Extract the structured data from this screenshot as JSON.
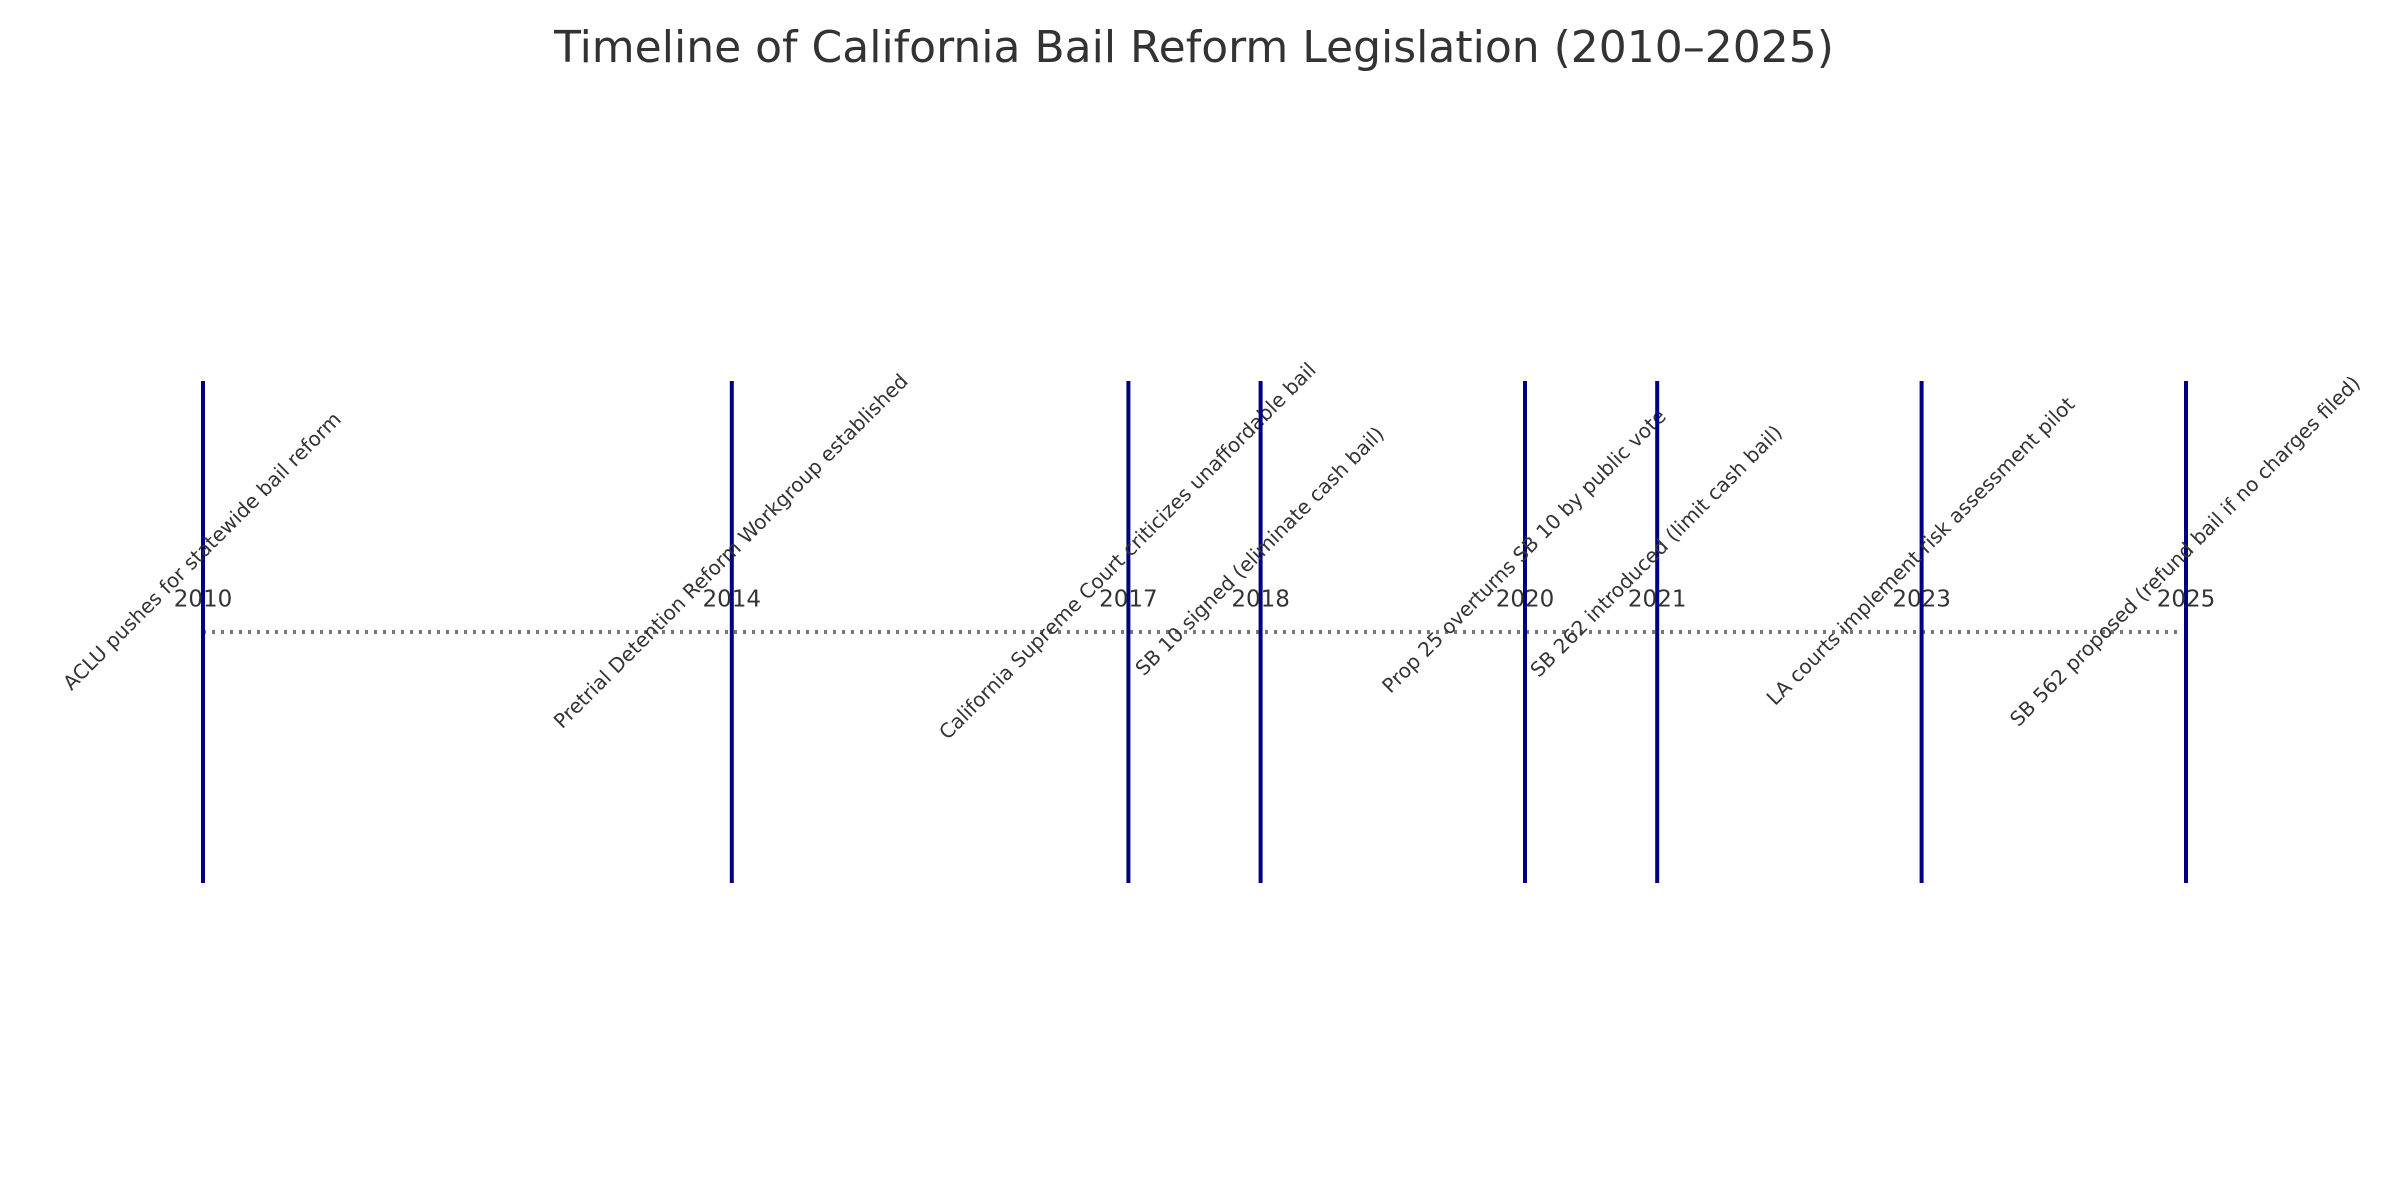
{
  "chart_data": {
    "type": "timeline",
    "title": "Timeline of California Bail Reform Legislation (2010–2025)",
    "x": [
      2010,
      2014,
      2017,
      2018,
      2020,
      2021,
      2023,
      2025
    ],
    "events": [
      "ACLU pushes for statewide bail reform",
      "Pretrial Detention Reform Workgroup established",
      "California Supreme Court criticizes unaffordable bail",
      "SB 10 signed (eliminate cash bail)",
      "Prop 25 overturns SB 10 by public vote",
      "SB 262 introduced (limit cash bail)",
      "LA courts implement risk assessment pilot",
      "SB 562 proposed (refund bail if no charges filed)"
    ],
    "xlim": [
      2010,
      2025
    ],
    "color": "#000080"
  }
}
